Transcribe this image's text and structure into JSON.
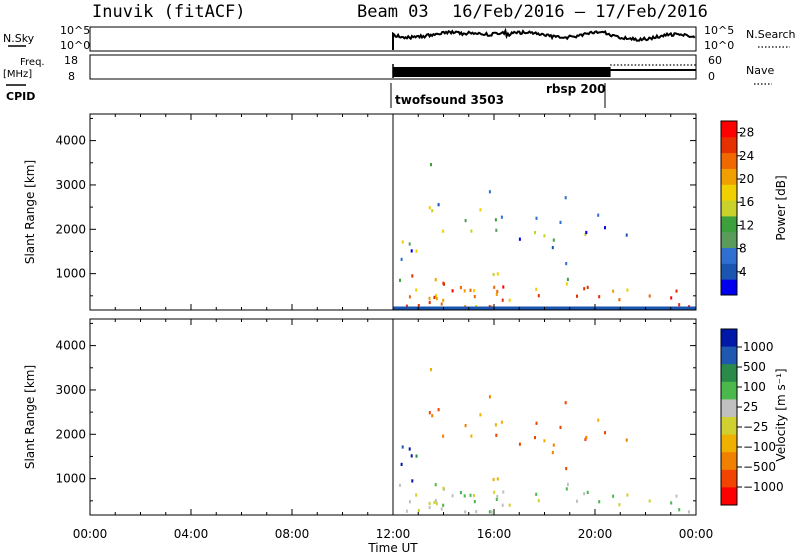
{
  "header": {
    "station": "Inuvik (fitACF)",
    "beam": "Beam 03",
    "dates": "16/Feb/2016 – 17/Feb/2016"
  },
  "labels": {
    "nsky": "N.Sky",
    "freq_top": "Freq.",
    "freq_unit": "[MHz]",
    "cpid": "CPID",
    "nsearch": "N.Search",
    "nave": "Nave"
  },
  "ticks": {
    "nsky_hi": "10^5",
    "nsky_lo": "10^0",
    "freq_hi": "18",
    "freq_lo": "8",
    "nave_hi": "60",
    "nave_lo": "0"
  },
  "cpid": {
    "first": "twofsound 3503",
    "second": "rbsp 200"
  },
  "colors": {
    "power_scale": [
      "#0000ee",
      "#1a55b0",
      "#2f6fd0",
      "#5a9a5a",
      "#3ca03c",
      "#c8d22a",
      "#f0d000",
      "#f0a000",
      "#f06800",
      "#e53000",
      "#ff0000"
    ],
    "velocity_scale": [
      "#0018a8",
      "#1e58b0",
      "#2a8a4a",
      "#4bb84b",
      "#c0c0c0",
      "#d0d030",
      "#f0b000",
      "#f08000",
      "#f04400",
      "#ff0000"
    ]
  },
  "chart_data": [
    {
      "type": "heatmap",
      "title": "Power",
      "xlabel": "Time UT",
      "ylabel": "Slant Range [km]",
      "xticks": [
        "00:00",
        "04:00",
        "08:00",
        "12:00",
        "16:00",
        "20:00",
        "00:00"
      ],
      "yticks": [
        "1000",
        "2000",
        "3000",
        "4000"
      ],
      "ylim": [
        180,
        4600
      ],
      "xlim_hours": [
        0,
        24
      ],
      "colorbar_label": "Power [dB]",
      "colorbar_ticks": [
        "4",
        "8",
        "12",
        "16",
        "20",
        "24",
        "28"
      ],
      "colorbar_range": [
        0,
        30
      ],
      "data_start_hour": 12.0,
      "data_end_hour": 24.0
    },
    {
      "type": "heatmap",
      "title": "Velocity",
      "xlabel": "Time UT",
      "ylabel": "Slant Range [km]",
      "xticks": [
        "00:00",
        "04:00",
        "08:00",
        "12:00",
        "16:00",
        "20:00",
        "00:00"
      ],
      "yticks": [
        "1000",
        "2000",
        "3000",
        "4000"
      ],
      "ylim": [
        180,
        4600
      ],
      "xlim_hours": [
        0,
        24
      ],
      "colorbar_label": "Velocity [m s⁻¹]",
      "colorbar_ticks": [
        "1000",
        "500",
        "100",
        "25",
        "−25",
        "−100",
        "−500",
        "−1000"
      ],
      "data_start_hour": 12.0,
      "data_end_hour": 24.0
    }
  ]
}
